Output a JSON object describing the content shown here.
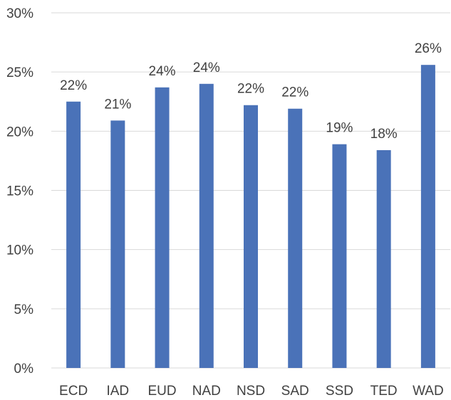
{
  "chart_data": {
    "type": "bar",
    "title": "",
    "xlabel": "",
    "ylabel": "",
    "categories": [
      "ECD",
      "IAD",
      "EUD",
      "NAD",
      "NSD",
      "SAD",
      "SSD",
      "TED",
      "WAD"
    ],
    "values": [
      0.225,
      0.209,
      0.237,
      0.24,
      0.222,
      0.219,
      0.189,
      0.184,
      0.256
    ],
    "data_labels": [
      "22%",
      "21%",
      "24%",
      "24%",
      "22%",
      "22%",
      "19%",
      "18%",
      "26%"
    ],
    "y_ticks": [
      0,
      0.05,
      0.1,
      0.15,
      0.2,
      0.25,
      0.3
    ],
    "y_tick_labels": [
      "0%",
      "5%",
      "10%",
      "15%",
      "20%",
      "25%",
      "30%"
    ],
    "ylim": [
      0,
      0.3
    ],
    "grid": true,
    "legend": "none",
    "bar_color": "#4a72b8"
  }
}
